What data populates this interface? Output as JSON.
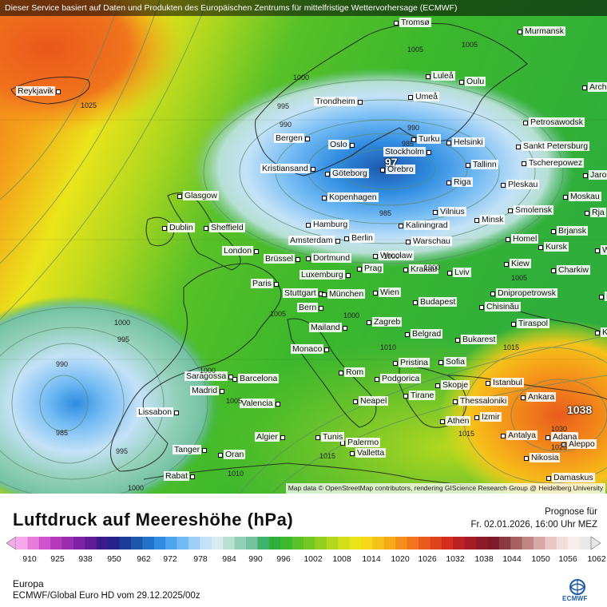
{
  "header": {
    "disclaimer": "Dieser Service basiert auf Daten und Produkten des Europäischen Zentrums für mittelfristige Wettervorhersage (ECMWF)"
  },
  "map": {
    "attribution": "Map data © OpenStreetMap contributors, rendering GIScience Research Group @ Heidelberg University",
    "cities": [
      {
        "id": "tromso",
        "name": "Tromsø"
      },
      {
        "id": "murmansk",
        "name": "Murmansk"
      },
      {
        "id": "reykjavik",
        "name": "Reykjavik"
      },
      {
        "id": "lulea",
        "name": "Luleå"
      },
      {
        "id": "oulu",
        "name": "Oulu"
      },
      {
        "id": "arch",
        "name": "Arch"
      },
      {
        "id": "trondheim",
        "name": "Trondheim"
      },
      {
        "id": "umea",
        "name": "Umeå"
      },
      {
        "id": "petrosawodsk",
        "name": "Petrosawodsk"
      },
      {
        "id": "bergen",
        "name": "Bergen"
      },
      {
        "id": "turku",
        "name": "Turku"
      },
      {
        "id": "helsinki",
        "name": "Helsinki"
      },
      {
        "id": "oslo",
        "name": "Oslo"
      },
      {
        "id": "stockholm",
        "name": "Stockholm"
      },
      {
        "id": "sanktpetersburg",
        "name": "Sankt Petersburg"
      },
      {
        "id": "kristiansand",
        "name": "Kristiansand"
      },
      {
        "id": "orebro",
        "name": "Örebro"
      },
      {
        "id": "tallinn",
        "name": "Tallinn"
      },
      {
        "id": "tscherepowez",
        "name": "Tscherepowez"
      },
      {
        "id": "goteborg",
        "name": "Göteborg"
      },
      {
        "id": "jaros",
        "name": "Jaros"
      },
      {
        "id": "pleskau",
        "name": "Pleskau"
      },
      {
        "id": "riga",
        "name": "Riga"
      },
      {
        "id": "glasgow",
        "name": "Glasgow"
      },
      {
        "id": "kopenhagen",
        "name": "Kopenhagen"
      },
      {
        "id": "moskau",
        "name": "Moskau"
      },
      {
        "id": "vilnius",
        "name": "Vilnius"
      },
      {
        "id": "smolensk",
        "name": "Smolensk"
      },
      {
        "id": "rja",
        "name": "Rja"
      },
      {
        "id": "minsk",
        "name": "Minsk"
      },
      {
        "id": "dublin",
        "name": "Dublin"
      },
      {
        "id": "sheffield",
        "name": "Sheffield"
      },
      {
        "id": "hamburg",
        "name": "Hamburg"
      },
      {
        "id": "kaliningrad",
        "name": "Kaliningrad"
      },
      {
        "id": "brjansk",
        "name": "Brjansk"
      },
      {
        "id": "berlin",
        "name": "Berlin"
      },
      {
        "id": "amsterdam",
        "name": "Amsterdam"
      },
      {
        "id": "warschau",
        "name": "Warschau"
      },
      {
        "id": "homel",
        "name": "Homel"
      },
      {
        "id": "kursk",
        "name": "Kursk"
      },
      {
        "id": "woron",
        "name": "Woron"
      },
      {
        "id": "london",
        "name": "London"
      },
      {
        "id": "wroclaw",
        "name": "Wrocław"
      },
      {
        "id": "dortmund",
        "name": "Dortmund"
      },
      {
        "id": "brussel",
        "name": "Brüssel"
      },
      {
        "id": "kiew",
        "name": "Kiew"
      },
      {
        "id": "charkiw",
        "name": "Charkiw"
      },
      {
        "id": "prag",
        "name": "Prag"
      },
      {
        "id": "krakau",
        "name": "Krakau"
      },
      {
        "id": "lviv",
        "name": "Lviv"
      },
      {
        "id": "luxemburg",
        "name": "Luxemburg"
      },
      {
        "id": "paris",
        "name": "Paris"
      },
      {
        "id": "stuttgart",
        "name": "Stuttgart"
      },
      {
        "id": "munchen",
        "name": "München"
      },
      {
        "id": "wien",
        "name": "Wien"
      },
      {
        "id": "dnipro",
        "name": "Dnipropetrowsk"
      },
      {
        "id": "rosto",
        "name": "Rosto"
      },
      {
        "id": "chisinau",
        "name": "Chisinău"
      },
      {
        "id": "bern",
        "name": "Bern"
      },
      {
        "id": "budapest",
        "name": "Budapest"
      },
      {
        "id": "tiraspol",
        "name": "Tiraspol"
      },
      {
        "id": "krasno",
        "name": "Krasno"
      },
      {
        "id": "mailand",
        "name": "Mailand"
      },
      {
        "id": "zagreb",
        "name": "Zagreb"
      },
      {
        "id": "belgrad",
        "name": "Belgrad"
      },
      {
        "id": "bukarest",
        "name": "Bukarest"
      },
      {
        "id": "monaco",
        "name": "Monaco"
      },
      {
        "id": "pristina",
        "name": "Pristina"
      },
      {
        "id": "sofia",
        "name": "Sofia"
      },
      {
        "id": "saragossa",
        "name": "Saragossa"
      },
      {
        "id": "barcelona",
        "name": "Barcelona"
      },
      {
        "id": "rom",
        "name": "Rom"
      },
      {
        "id": "podgorica",
        "name": "Podgorica"
      },
      {
        "id": "istanbul",
        "name": "Istanbul"
      },
      {
        "id": "madrid",
        "name": "Madrid"
      },
      {
        "id": "skopje",
        "name": "Skopje"
      },
      {
        "id": "tirane",
        "name": "Tirane"
      },
      {
        "id": "ankara",
        "name": "Ankara"
      },
      {
        "id": "valencia",
        "name": "Valencia"
      },
      {
        "id": "neapel",
        "name": "Neapel"
      },
      {
        "id": "thessaloniki",
        "name": "Thessaloniki"
      },
      {
        "id": "lissabon",
        "name": "Lissabon"
      },
      {
        "id": "izmir",
        "name": "Izmir"
      },
      {
        "id": "athen",
        "name": "Athen"
      },
      {
        "id": "palermo",
        "name": "Palermo"
      },
      {
        "id": "algier",
        "name": "Algier"
      },
      {
        "id": "tunis",
        "name": "Tunis"
      },
      {
        "id": "antalya",
        "name": "Antalya"
      },
      {
        "id": "adana",
        "name": "Adana"
      },
      {
        "id": "aleppo",
        "name": "Aleppo"
      },
      {
        "id": "tanger",
        "name": "Tanger"
      },
      {
        "id": "oran",
        "name": "Oran"
      },
      {
        "id": "valletta",
        "name": "Valletta"
      },
      {
        "id": "nikosia",
        "name": "Nikosia"
      },
      {
        "id": "rabat",
        "name": "Rabat"
      },
      {
        "id": "damaskus",
        "name": "Damaskus"
      }
    ],
    "isobar_labels": [
      {
        "id": "i1",
        "value": "1005"
      },
      {
        "id": "i2",
        "value": "1005"
      },
      {
        "id": "i3",
        "value": "1000"
      },
      {
        "id": "i4",
        "value": "1025"
      },
      {
        "id": "i5",
        "value": "995"
      },
      {
        "id": "i6",
        "value": "990"
      },
      {
        "id": "i7",
        "value": "990"
      },
      {
        "id": "i8",
        "value": "985"
      },
      {
        "id": "i9",
        "value": "985"
      },
      {
        "id": "i10",
        "value": "1000"
      },
      {
        "id": "i11",
        "value": "1005"
      },
      {
        "id": "i12",
        "value": "1005"
      },
      {
        "id": "i13",
        "value": "1000"
      },
      {
        "id": "i14",
        "value": "995"
      },
      {
        "id": "i15",
        "value": "990"
      },
      {
        "id": "i16",
        "value": "985"
      },
      {
        "id": "i17",
        "value": "995"
      },
      {
        "id": "i18",
        "value": "1000"
      },
      {
        "id": "i19",
        "value": "1010"
      },
      {
        "id": "i20",
        "value": "1015"
      },
      {
        "id": "i21",
        "value": "1015"
      },
      {
        "id": "i22",
        "value": "1030"
      },
      {
        "id": "i23",
        "value": "1025"
      },
      {
        "id": "i24",
        "value": "1010"
      },
      {
        "id": "i25",
        "value": "1015"
      },
      {
        "id": "i26",
        "value": "1000"
      },
      {
        "id": "i27",
        "value": "1005"
      },
      {
        "id": "i28",
        "value": "1000"
      },
      {
        "id": "i29",
        "value": "1000"
      }
    ],
    "low_center_value": "97",
    "high_center_value": "1038",
    "pressure_colors": [
      "#f5a9e6",
      "#e77bdc",
      "#cf53cc",
      "#b43bbd",
      "#9a2cb0",
      "#7d22a4",
      "#601c97",
      "#3b1a8c",
      "#23238a",
      "#1c3c99",
      "#1d58ad",
      "#2172c8",
      "#2f8ce0",
      "#4ea4ee",
      "#73bbf4",
      "#9dd0f7",
      "#c4e2f7",
      "#d7ecec",
      "#b7e0d3",
      "#93d0b9",
      "#73c2a2",
      "#3fb36b",
      "#2fae3c",
      "#3cb82c",
      "#58c128",
      "#74c824",
      "#93cf22",
      "#b3d81f",
      "#d2e01c",
      "#eae51a",
      "#f4d81a",
      "#f6c21a",
      "#f6aa1a",
      "#f48f1a",
      "#f0751c",
      "#e95c1c",
      "#df441d",
      "#d22f1e",
      "#bb2223",
      "#a51c25",
      "#8e1b27",
      "#7c1b2a",
      "#8a3b41",
      "#a56060",
      "#c08585",
      "#d8a8a8",
      "#eac6c6",
      "#f3dede",
      "#f7eded",
      "#e9e9e9"
    ]
  },
  "legend": {
    "title": "Luftdruck auf Meereshöhe (hPa)",
    "forecast_label": "Prognose für",
    "forecast_time": "Fr. 02.01.2026, 16:00 Uhr MEZ",
    "ticks": [
      "910",
      "925",
      "938",
      "950",
      "962",
      "972",
      "978",
      "984",
      "990",
      "996",
      "1002",
      "1008",
      "1014",
      "1020",
      "1026",
      "1032",
      "1038",
      "1044",
      "1050",
      "1056",
      "1062"
    ],
    "region": "Europa",
    "model": "ECMWF/Global Euro HD vom  29.12.2025/00z",
    "logo_text": "ECMWF"
  }
}
